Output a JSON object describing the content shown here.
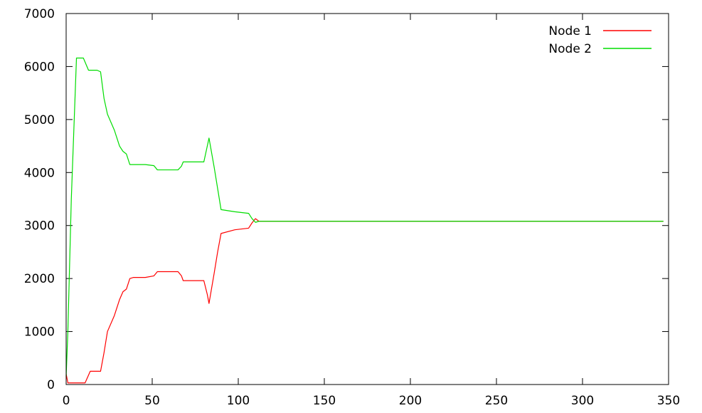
{
  "chart_data": {
    "type": "line",
    "title": "",
    "xlabel": "",
    "ylabel": "",
    "xlim": [
      0,
      350
    ],
    "ylim": [
      0,
      7000
    ],
    "xticks": [
      0,
      50,
      100,
      150,
      200,
      250,
      300,
      350
    ],
    "yticks": [
      0,
      1000,
      2000,
      3000,
      4000,
      5000,
      6000,
      7000
    ],
    "grid": false,
    "legend_position": "top-right",
    "series": [
      {
        "name": "Node 1",
        "color": "#ff0000",
        "points": [
          [
            0,
            200
          ],
          [
            1,
            30
          ],
          [
            5,
            30
          ],
          [
            11,
            30
          ],
          [
            14,
            250
          ],
          [
            20,
            250
          ],
          [
            22,
            600
          ],
          [
            24,
            1000
          ],
          [
            28,
            1300
          ],
          [
            31,
            1600
          ],
          [
            33,
            1750
          ],
          [
            35,
            1800
          ],
          [
            37,
            2000
          ],
          [
            39,
            2020
          ],
          [
            46,
            2020
          ],
          [
            51,
            2050
          ],
          [
            53,
            2130
          ],
          [
            57,
            2130
          ],
          [
            65,
            2130
          ],
          [
            67,
            2050
          ],
          [
            68,
            1960
          ],
          [
            73,
            1960
          ],
          [
            80,
            1960
          ],
          [
            82,
            1700
          ],
          [
            83,
            1530
          ],
          [
            86,
            2100
          ],
          [
            88,
            2500
          ],
          [
            90,
            2850
          ],
          [
            98,
            2920
          ],
          [
            106,
            2950
          ],
          [
            108,
            3050
          ],
          [
            110,
            3130
          ],
          [
            112,
            3080
          ],
          [
            200,
            3080
          ],
          [
            347,
            3080
          ]
        ]
      },
      {
        "name": "Node 2",
        "color": "#00dd00",
        "points": [
          [
            0,
            150
          ],
          [
            1,
            1000
          ],
          [
            3,
            3500
          ],
          [
            6,
            6160
          ],
          [
            10,
            6160
          ],
          [
            13,
            5930
          ],
          [
            18,
            5930
          ],
          [
            20,
            5900
          ],
          [
            22,
            5400
          ],
          [
            24,
            5100
          ],
          [
            28,
            4800
          ],
          [
            31,
            4500
          ],
          [
            33,
            4400
          ],
          [
            35,
            4350
          ],
          [
            37,
            4150
          ],
          [
            40,
            4150
          ],
          [
            46,
            4150
          ],
          [
            51,
            4130
          ],
          [
            53,
            4050
          ],
          [
            57,
            4050
          ],
          [
            65,
            4050
          ],
          [
            67,
            4120
          ],
          [
            68,
            4200
          ],
          [
            73,
            4200
          ],
          [
            80,
            4200
          ],
          [
            82,
            4500
          ],
          [
            83,
            4650
          ],
          [
            86,
            4100
          ],
          [
            88,
            3700
          ],
          [
            90,
            3300
          ],
          [
            98,
            3260
          ],
          [
            106,
            3230
          ],
          [
            108,
            3130
          ],
          [
            110,
            3060
          ],
          [
            112,
            3080
          ],
          [
            200,
            3080
          ],
          [
            347,
            3080
          ]
        ]
      }
    ]
  }
}
